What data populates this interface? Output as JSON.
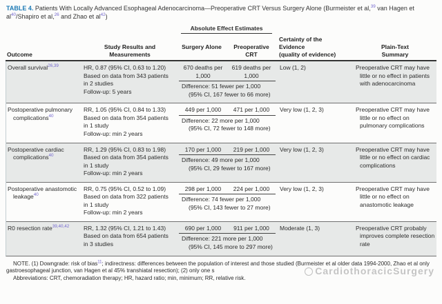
{
  "title": {
    "label": "TABLE 4.",
    "part1": " Patients With Locally Advanced Esophageal Adenocarcinoma—Preoperative CRT Versus Surgery Alone (Burmeister et al,",
    "sup1": "39",
    "part2": " van Hagen et al",
    "sup2": "40",
    "part3": "/Shapiro et al,",
    "sup3": "26",
    "part4": " and Zhao et al",
    "sup4": "42",
    "part5": ")"
  },
  "header": {
    "abs_span": "Absolute Effect Estimates",
    "outcome": "Outcome",
    "study": "Study Results and Measurements",
    "surgery": "Surgery Alone",
    "preop": "Preoperative CRT",
    "certainty_line1": "Certainty of the Evidence",
    "certainty_line2": "(quality of evidence)",
    "summary": "Plain-Text Summary"
  },
  "rows": [
    {
      "outcome": "Overall survival",
      "outcome_sup": "26,39",
      "result": "HR, 0.87 (95% CI, 0.63 to 1.20)",
      "based": "Based on data from 343 patients in 2 studies",
      "followup": "Follow-up: 5 years",
      "surgery": "670 deaths per 1,000",
      "preop": "619 deaths per 1,000",
      "difference": "Difference: 51 fewer per 1,000 (95% CI, 167 fewer to 66 more)",
      "certainty": "Low (1, 2)",
      "summary": "Preoperative CRT may have little or no effect in patients with adenocarcinoma"
    },
    {
      "outcome": "Postoperative pulmonary complications",
      "outcome_sup": "40",
      "result": "RR, 1.05 (95% CI, 0.84 to 1.33)",
      "based": "Based on data from 354 patients in 1 study",
      "followup": "Follow-up: min 2 years",
      "surgery": "449 per 1,000",
      "preop": "471 per 1,000",
      "difference": "Difference: 22 more per 1,000 (95% CI, 72 fewer to 148 more)",
      "certainty": "Very low (1, 2, 3)",
      "summary": "Preoperative CRT may have little or no effect on pulmonary complications"
    },
    {
      "outcome": "Postoperative cardiac complications",
      "outcome_sup": "40",
      "result": "RR, 1.29 (95% CI, 0.83 to 1.98)",
      "based": "Based on data from 354 patients in 1 study",
      "followup": "Follow-up: min 2 years",
      "surgery": "170 per 1,000",
      "preop": "219 per 1,000",
      "difference": "Difference: 49 more per 1,000 (95% CI, 29 fewer to 167 more)",
      "certainty": "Very low (1, 2, 3)",
      "summary": "Preoperative CRT may have little or no effect on cardiac complications"
    },
    {
      "outcome": "Postoperative anastomotic leakage",
      "outcome_sup": "40",
      "result": "RR, 0.75 (95% CI, 0.52 to 1.09)",
      "based": "Based on data from 322 patients in 1 study",
      "followup": "Follow-up: min 2 years",
      "surgery": "298 per 1,000",
      "preop": "224 per 1,000",
      "difference": "Difference: 74 fewer per 1,000 (95% CI, 143 fewer to 27 more)",
      "certainty": "Very low (1, 2, 3)",
      "summary": "Preoperative CRT may have little or no effect on anastomotic leakage"
    },
    {
      "outcome": "R0 resection rate",
      "outcome_sup": "39,40,42",
      "result": "RR, 1.32 (95% CI, 1.21 to 1.43)",
      "based": "Based on data from 654 patients in 3 studies",
      "surgery": "690 per 1,000",
      "preop": "911 per 1,000",
      "difference": "Difference: 221 more per 1,000 (95% CI, 145 more to 297 more)",
      "certainty": "Moderate (1, 3)",
      "summary": "Preoperative CRT probably improves complete resection rate"
    }
  ],
  "note": {
    "p1a": "NOTE. (1) Downgrade: risk of bias",
    "p1_sup": "11",
    "p1b": "; indirectness: differences between the population of interest and those studied (Burmeister et al older data 1994-2000, Zhao et al only gastroesophageal junction, van Hagen et al 45% transhiatal resection); (2) only one s",
    "p2": "Abbreviations: CRT, chemoradiation therapy; HR, hazard ratio; min, minimum; RR, relative risk."
  },
  "watermark": {
    "text": "CardiothoracicSurgery"
  },
  "colors": {
    "table_label_blue": "#1d7ab5",
    "citation_purple": "#7468cf",
    "row_shade_gray": "#e7e9e8"
  }
}
